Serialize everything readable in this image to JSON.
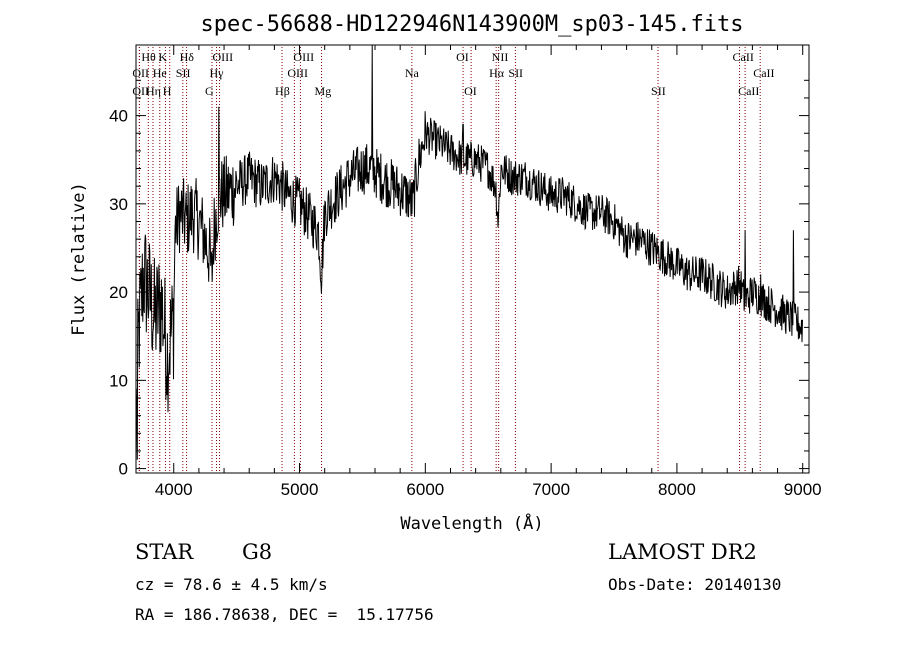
{
  "chart_data": {
    "type": "line",
    "title": "spec-56688-HD122946N143900M_sp03-145.fits",
    "xlabel": "Wavelength (Å)",
    "ylabel": "Flux (relative)",
    "xlim": [
      3700,
      9050
    ],
    "ylim": [
      -0.5,
      48
    ],
    "xticks": [
      4000,
      5000,
      6000,
      7000,
      8000,
      9000
    ],
    "yticks": [
      0,
      10,
      20,
      30,
      40
    ],
    "grid": false,
    "anchors": [
      [
        3700,
        6
      ],
      [
        3720,
        15
      ],
      [
        3760,
        22
      ],
      [
        3800,
        20
      ],
      [
        3850,
        17
      ],
      [
        3900,
        19
      ],
      [
        3950,
        13
      ],
      [
        4000,
        17
      ],
      [
        4010,
        27
      ],
      [
        4050,
        29
      ],
      [
        4100,
        28
      ],
      [
        4150,
        29
      ],
      [
        4200,
        28
      ],
      [
        4250,
        26
      ],
      [
        4290,
        24
      ],
      [
        4300,
        21
      ],
      [
        4320,
        27
      ],
      [
        4360,
        31
      ],
      [
        4400,
        31
      ],
      [
        4500,
        32
      ],
      [
        4600,
        33
      ],
      [
        4700,
        32
      ],
      [
        4800,
        33
      ],
      [
        4860,
        32
      ],
      [
        4900,
        31
      ],
      [
        5000,
        30
      ],
      [
        5100,
        28
      ],
      [
        5150,
        27
      ],
      [
        5175,
        22
      ],
      [
        5200,
        29
      ],
      [
        5300,
        31
      ],
      [
        5400,
        33
      ],
      [
        5500,
        34
      ],
      [
        5570,
        34
      ],
      [
        5650,
        33
      ],
      [
        5750,
        32
      ],
      [
        5850,
        31
      ],
      [
        5900,
        30
      ],
      [
        5950,
        35
      ],
      [
        6000,
        38
      ],
      [
        6100,
        37
      ],
      [
        6200,
        36
      ],
      [
        6300,
        35
      ],
      [
        6400,
        35
      ],
      [
        6500,
        34
      ],
      [
        6560,
        32
      ],
      [
        6580,
        28
      ],
      [
        6600,
        34
      ],
      [
        6700,
        33
      ],
      [
        6800,
        33
      ],
      [
        6900,
        32
      ],
      [
        7000,
        31
      ],
      [
        7100,
        31
      ],
      [
        7200,
        30
      ],
      [
        7300,
        29
      ],
      [
        7400,
        29
      ],
      [
        7500,
        28
      ],
      [
        7600,
        26
      ],
      [
        7700,
        26
      ],
      [
        7800,
        25
      ],
      [
        7900,
        24
      ],
      [
        8000,
        23
      ],
      [
        8100,
        22
      ],
      [
        8200,
        22
      ],
      [
        8300,
        21
      ],
      [
        8400,
        20
      ],
      [
        8500,
        21
      ],
      [
        8540,
        19
      ],
      [
        8600,
        20
      ],
      [
        8700,
        19
      ],
      [
        8800,
        18
      ],
      [
        8900,
        17
      ],
      [
        9000,
        16
      ]
    ],
    "spikes": [
      [
        4358,
        41
      ],
      [
        5577,
        50
      ],
      [
        8542,
        27
      ],
      [
        8665,
        22
      ],
      [
        8925,
        27
      ],
      [
        3710,
        1
      ],
      [
        6300,
        39
      ]
    ],
    "lines_top": [
      {
        "label": "Hθ",
        "x": 3798,
        "row": 1
      },
      {
        "label": "K",
        "x": 3934,
        "row": 1
      },
      {
        "label": "Hδ",
        "x": 4102,
        "row": 1
      },
      {
        "label": "OIII",
        "x": 4364,
        "row": 1
      },
      {
        "label": "OIII",
        "x": 5007,
        "row": 1
      },
      {
        "label": "OI",
        "x": 6300,
        "row": 1
      },
      {
        "label": "NII",
        "x": 6583,
        "row": 1
      },
      {
        "label": "CaII",
        "x": 8498,
        "row": 1
      },
      {
        "label": "OII",
        "x": 3727,
        "row": 2
      },
      {
        "label": "He",
        "x": 3889,
        "row": 2
      },
      {
        "label": "SII",
        "x": 4072,
        "row": 2
      },
      {
        "label": "Hγ",
        "x": 4340,
        "row": 2
      },
      {
        "label": "OIII",
        "x": 4959,
        "row": 2
      },
      {
        "label": "Na",
        "x": 5893,
        "row": 2
      },
      {
        "label": "Hα",
        "x": 6563,
        "row": 2
      },
      {
        "label": "SII",
        "x": 6716,
        "row": 2
      },
      {
        "label": "CaII",
        "x": 8662,
        "row": 2
      },
      {
        "label": "OII",
        "x": 3727,
        "row": 3
      },
      {
        "label": "Hη",
        "x": 3835,
        "row": 3
      },
      {
        "label": "H",
        "x": 3968,
        "row": 3
      },
      {
        "label": "G",
        "x": 4304,
        "row": 3
      },
      {
        "label": "Hβ",
        "x": 4861,
        "row": 3
      },
      {
        "label": "Mg",
        "x": 5175,
        "row": 3
      },
      {
        "label": "OI",
        "x": 6364,
        "row": 3
      },
      {
        "label": "SII",
        "x": 7850,
        "row": 3
      },
      {
        "label": "CaII",
        "x": 8542,
        "row": 3
      }
    ],
    "line_color": "#8b0000",
    "spectrum_color": "#000000"
  },
  "info": {
    "object_class": "STAR",
    "subclass": "G8",
    "survey": "LAMOST DR2",
    "cz": "cz = 78.6 ± 4.5 km/s",
    "obs_date": "Obs-Date: 20140130",
    "coords": "RA = 186.78638, DEC =  15.17756"
  }
}
